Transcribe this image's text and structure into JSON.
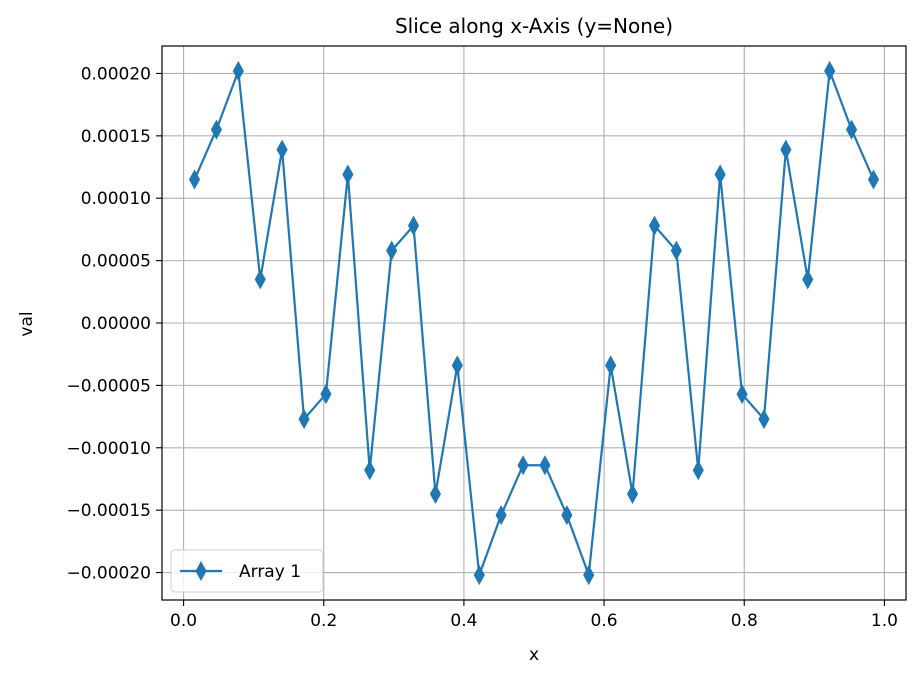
{
  "chart_data": {
    "type": "line",
    "title": "Slice along x-Axis (y=None)",
    "xlabel": "x",
    "ylabel": "val",
    "xlim": [
      -0.0308,
      1.0308
    ],
    "ylim": [
      -0.000222,
      0.000222
    ],
    "xticks": [
      0.0,
      0.2,
      0.4,
      0.6,
      0.8,
      1.0
    ],
    "xtick_labels": [
      "0.0",
      "0.2",
      "0.4",
      "0.6",
      "0.8",
      "1.0"
    ],
    "yticks": [
      -0.0002,
      -0.00015,
      -0.0001,
      -5e-05,
      0.0,
      5e-05,
      0.0001,
      0.00015,
      0.0002
    ],
    "ytick_labels": [
      "−0.00020",
      "−0.00015",
      "−0.00010",
      "−0.00005",
      "0.00000",
      "0.00005",
      "0.00010",
      "0.00015",
      "0.00020"
    ],
    "grid": true,
    "legend_position": "lower-left",
    "series": [
      {
        "name": "Array 1",
        "color": "#1f77b4",
        "marker": "thin-diamond",
        "x": [
          0.0156,
          0.0469,
          0.0781,
          0.1094,
          0.1406,
          0.1719,
          0.2031,
          0.2344,
          0.2656,
          0.2969,
          0.3281,
          0.3594,
          0.3906,
          0.4219,
          0.4531,
          0.4844,
          0.5156,
          0.5469,
          0.5781,
          0.6094,
          0.6406,
          0.6719,
          0.7031,
          0.7344,
          0.7656,
          0.7969,
          0.8281,
          0.8594,
          0.8906,
          0.9219,
          0.9531,
          0.9844
        ],
        "y": [
          0.000115,
          0.000155,
          0.000202,
          3.5e-05,
          0.000139,
          -7.7e-05,
          -5.7e-05,
          0.000119,
          -0.000118,
          5.8e-05,
          7.8e-05,
          -0.000137,
          -3.4e-05,
          -0.000202,
          -0.000154,
          -0.000114,
          -0.000114,
          -0.000154,
          -0.000202,
          -3.4e-05,
          -0.000137,
          7.8e-05,
          5.8e-05,
          -0.000118,
          0.000119,
          -5.7e-05,
          -7.7e-05,
          0.000139,
          3.5e-05,
          0.000202,
          0.000155,
          0.000115
        ]
      }
    ]
  }
}
